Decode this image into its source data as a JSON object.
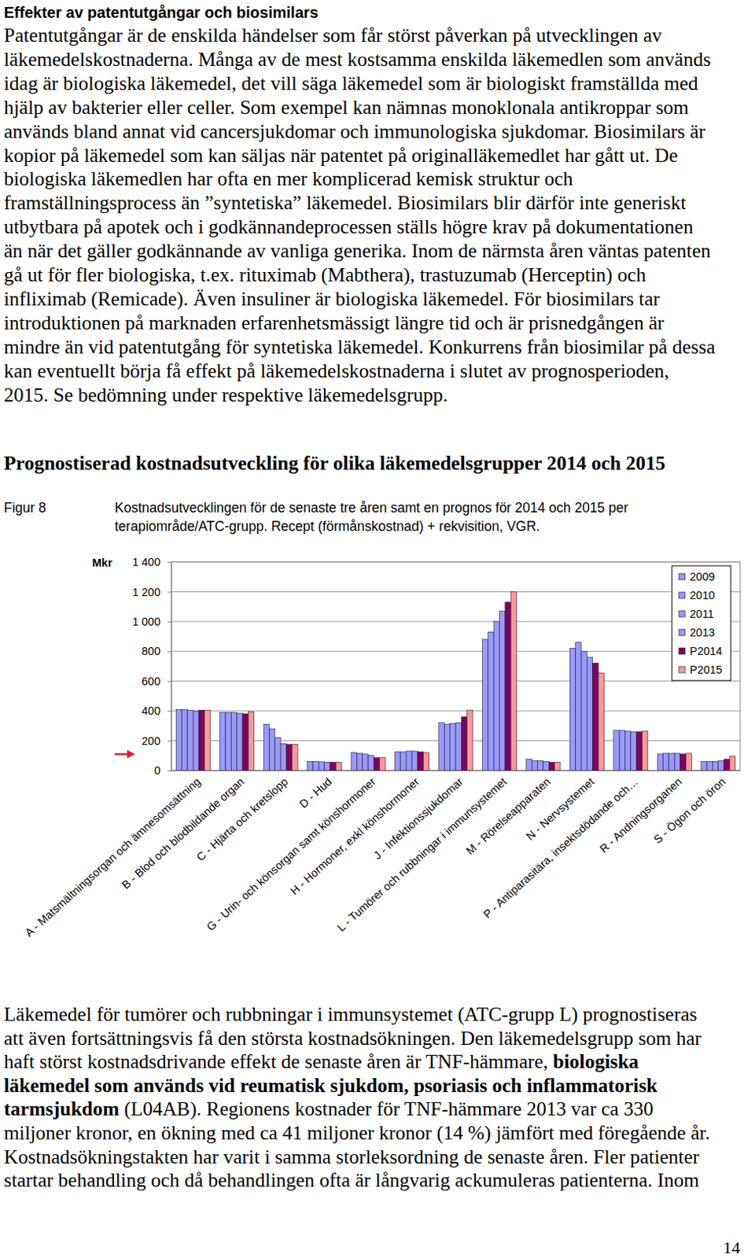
{
  "document": {
    "heading": "Effekter av patentutgångar och biosimilars",
    "paragraph_1": [
      "Patentutgångar är de enskilda händelser som får störst påverkan på utvecklingen av",
      "läkemedelskostnaderna. Många av de mest kostsamma enskilda läkemedlen som används",
      "idag är biologiska läkemedel, det vill säga läkemedel som är biologiskt framställda med",
      "hjälp av bakterier eller celler. Som exempel kan nämnas monoklonala antikroppar som",
      "används bland annat vid cancersjukdomar och immunologiska sjukdomar. Biosimilars är",
      "kopior på läkemedel som kan säljas när patentet på originalläkemedlet har gått ut. De",
      "biologiska läkemedlen har ofta en mer komplicerad kemisk struktur och",
      "framställningsprocess än ”syntetiska” läkemedel. Biosimilars blir därför inte generiskt",
      "utbytbara på apotek och i godkännandeprocessen ställs högre krav på dokumentationen",
      "än när det gäller godkännande av vanliga generika. Inom de närmsta åren väntas patenten",
      "gå ut för fler biologiska, t.ex. rituximab (Mabthera), trastuzumab (Herceptin) och",
      "infliximab (Remicade). Även insuliner är biologiska läkemedel. För biosimilars tar",
      "introduktionen på marknaden erfarenhetsmässigt längre tid och är prisnedgången är",
      "mindre än vid patentutgång för syntetiska läkemedel. Konkurrens från biosimilar på dessa",
      "kan eventuellt börja få effekt på läkemedelskostnaderna i slutet av prognosperioden,",
      "2015. Se bedömning under respektive läkemedelsgrupp."
    ],
    "section_title": "Prognostiserad kostnadsutveckling för olika läkemedelsgrupper 2014 och 2015",
    "figure_label": "Figur 8",
    "figure_caption": [
      "Kostnadsutvecklingen för de senaste tre åren samt en prognos för 2014 och 2015 per",
      "terapiområde/ATC-grupp. Recept (förmånskostnad) + rekvisition, VGR."
    ],
    "paragraph_2": [
      [
        "Läkemedel för tumörer och rubbningar i immunsystemet (ATC-grupp L) prognostiseras"
      ],
      [
        "att även fortsättningsvis få den största kostnadsökningen. Den läkemedelsgrupp som har"
      ],
      [
        "haft störst kostnadsdrivande effekt de senaste åren är TNF-hämmare, ",
        {
          "strong": "biologiska"
        }
      ],
      [
        {
          "strong": "läkemedel som används vid reumatisk sjukdom, psoriasis och inflammatorisk"
        }
      ],
      [
        {
          "strong": "tarmsjukdom"
        },
        " (L04AB). Regionens kostnader för TNF-hämmare 2013 var ca 330"
      ],
      [
        "miljoner kronor, en ökning med ca 41 miljoner kronor (14 %) jämfört med föregående år."
      ],
      [
        "Kostnadsökningstakten har varit i samma storleksordning de senaste åren. Fler patienter"
      ],
      [
        "startar behandling och då behandlingen ofta är långvarig ackumuleras patienterna. Inom"
      ]
    ],
    "page_number": "14"
  },
  "chart_data": {
    "type": "bar",
    "ylabel": "Mkr",
    "categories": [
      "A - Matsmältningsorgan och ämnesomsättning",
      "B - Blod och blodbildande organ",
      "C - Hjärta och kretslopp",
      "D - Hud",
      "G - Urin- och könsorgan samt könshormoner",
      "H - Hormoner, exkl könshormoner",
      "J - Infektionssjukdomar",
      "L - Tumörer och rubbningar i immunsystemet",
      "M - Rörelseapparaten",
      "N - Nervsystemet",
      "P - Antiparasitära, insektsdödande och…",
      "R - Andningsorganen",
      "S - Ögon och öron"
    ],
    "series": [
      {
        "name": "2009",
        "color": "#9999ff",
        "values": [
          410,
          390,
          310,
          60,
          120,
          125,
          320,
          880,
          75,
          820,
          270,
          110,
          60
        ]
      },
      {
        "name": "2010",
        "color": "#9999ff",
        "values": [
          410,
          390,
          280,
          60,
          115,
          125,
          310,
          930,
          65,
          860,
          270,
          115,
          60
        ]
      },
      {
        "name": "2011",
        "color": "#9999ff",
        "values": [
          405,
          390,
          220,
          58,
          110,
          130,
          315,
          1000,
          65,
          800,
          265,
          115,
          60
        ]
      },
      {
        "name": "2013",
        "color": "#9999ff",
        "values": [
          400,
          385,
          180,
          55,
          100,
          130,
          320,
          1070,
          60,
          760,
          260,
          115,
          65
        ]
      },
      {
        "name": "P2014",
        "color": "#800066",
        "values": [
          405,
          380,
          175,
          55,
          85,
          125,
          360,
          1130,
          55,
          720,
          260,
          110,
          75
        ]
      },
      {
        "name": "P2015",
        "color": "#ff9999",
        "values": [
          405,
          395,
          175,
          55,
          85,
          120,
          405,
          1200,
          55,
          655,
          265,
          115,
          95
        ]
      }
    ],
    "ylim": [
      0,
      1400
    ],
    "yticks": [
      0,
      200,
      400,
      600,
      800,
      {
        "value": 1000,
        "label": "1 000"
      },
      {
        "value": 1200,
        "label": "1 200"
      },
      {
        "value": 1400,
        "label": "1 400"
      }
    ],
    "grid": true,
    "legend": "top-right"
  }
}
